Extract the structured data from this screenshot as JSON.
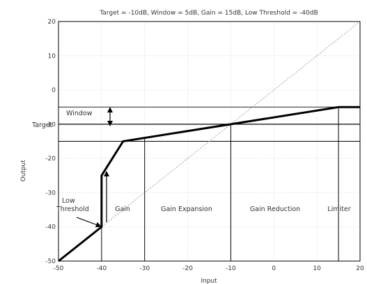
{
  "chart_data": {
    "type": "line",
    "title": "Target = -10dB, Window = 5dB, Gain = 15dB, Low Threshold = -40dB",
    "xlabel": "Input",
    "ylabel": "Output",
    "xlim": [
      -50,
      20
    ],
    "ylim": [
      -50,
      20
    ],
    "xticks": [
      "-50",
      "-40",
      "-30",
      "-20",
      "-10",
      "0",
      "10",
      "20"
    ],
    "yticks": [
      "20",
      "10",
      "0",
      "-10",
      "-20",
      "-30",
      "-40",
      "-50"
    ],
    "grid": true,
    "series": [
      {
        "values": [
          [
            -50,
            -50
          ],
          [
            -40,
            -40
          ],
          [
            -40,
            -25
          ],
          [
            -35,
            -15
          ],
          [
            -10,
            -10
          ],
          [
            15,
            -5
          ],
          [
            20,
            -5
          ]
        ]
      },
      {
        "values": [
          [
            -50,
            -50
          ],
          [
            20,
            20
          ]
        ]
      }
    ],
    "window_lines_y": [
      -5,
      -10,
      -15
    ],
    "vertical_dividers_x": [
      -40,
      -30,
      -10,
      15
    ],
    "annotations": {
      "target": "Target",
      "window": "Window",
      "low_threshold_line1": "Low",
      "low_threshold_line2": "Threshold",
      "regions": [
        "Gain",
        "Gain Expansion",
        "Gain Reduction",
        "Limiter"
      ]
    },
    "colors": {
      "main": "#000000",
      "diagonal": "#a0a0a0",
      "grid": "#c8c8c8"
    }
  }
}
